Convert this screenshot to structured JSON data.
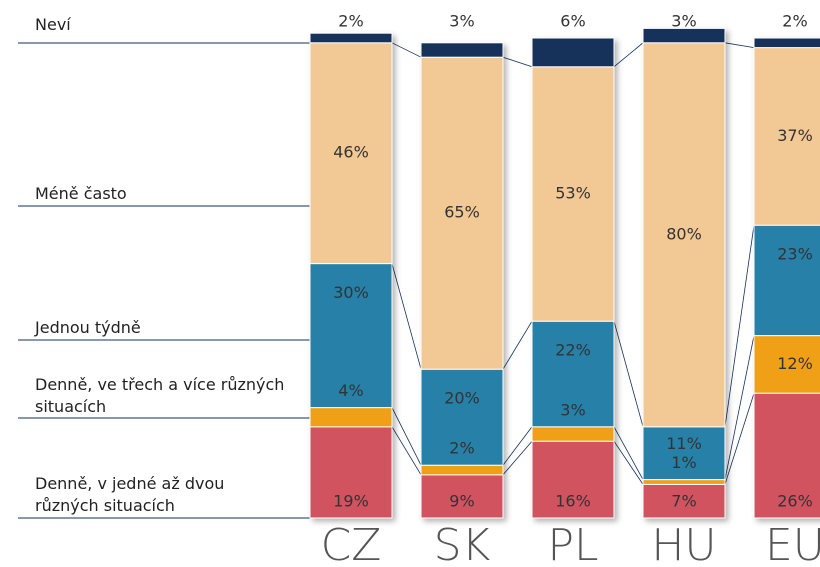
{
  "chart_data": {
    "type": "stacked-bar",
    "categories": [
      "CZ",
      "SK",
      "PL",
      "HU",
      "EU"
    ],
    "series": [
      {
        "name": "Denně, v jedné až dvou různých situacích",
        "color": "#d0535f",
        "values": [
          19,
          9,
          16,
          7,
          26
        ],
        "value_labels": [
          "19%",
          "9%",
          "16%",
          "7%",
          "26%"
        ]
      },
      {
        "name": "Denně, ve třech a více různých situacích",
        "color": "#f0a014",
        "values": [
          4,
          2,
          3,
          1,
          12
        ],
        "value_labels": [
          "4%",
          "2%",
          "3%",
          "1%",
          "12%"
        ]
      },
      {
        "name": "Jednou týdně",
        "color": "#2580a8",
        "values": [
          30,
          20,
          22,
          11,
          23
        ],
        "value_labels": [
          "30%",
          "20%",
          "22%",
          "11%",
          "23%"
        ]
      },
      {
        "name": "Méně často",
        "color": "#f2c895",
        "values": [
          46,
          65,
          53,
          80,
          37
        ],
        "value_labels": [
          "46%",
          "65%",
          "53%",
          "80%",
          "37%"
        ]
      },
      {
        "name": "Neví",
        "color": "#14305a",
        "values": [
          2,
          3,
          6,
          3,
          2
        ],
        "value_labels": [
          "2%",
          "3%",
          "6%",
          "3%",
          "2%"
        ]
      }
    ]
  }
}
